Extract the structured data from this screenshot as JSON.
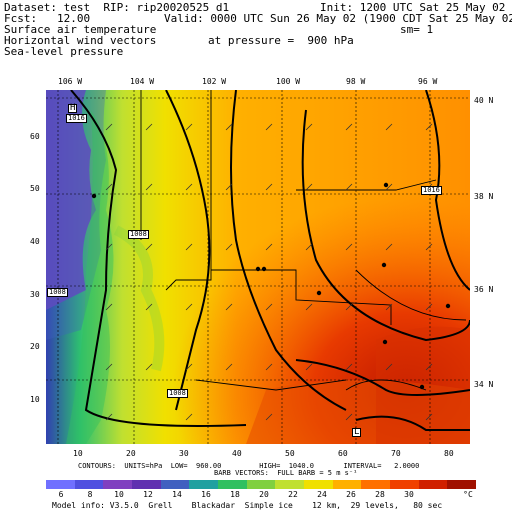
{
  "header": {
    "dataset": "Dataset: test  RIP: rip20020525 d1",
    "init": "Init: 1200 UTC Sat 25 May 02",
    "fcst": "Fcst:   12.00",
    "valid": "Valid: 0000 UTC Sun 26 May 02 (1900 CDT Sat 25 May 02)",
    "field1": "Surface air temperature",
    "sm": "sm= 1",
    "field2": "Horizontal wind vectors",
    "pressure": "at pressure =  900 hPa",
    "field3": "Sea-level pressure"
  },
  "map": {
    "lon_labels": [
      "106 W",
      "104 W",
      "102 W",
      "100 W",
      "98 W",
      "96 W"
    ],
    "lat_labels": [
      "40 N",
      "38 N",
      "36 N",
      "34 N"
    ],
    "y_ticks": [
      "60",
      "50",
      "40",
      "30",
      "20",
      "10"
    ],
    "x_ticks": [
      "10",
      "20",
      "30",
      "40",
      "50",
      "60",
      "70",
      "80"
    ],
    "contour_labels": [
      "1016",
      "1008",
      "1016",
      "1008",
      "1008"
    ],
    "pressure_centers": [
      "H",
      "L"
    ]
  },
  "footer": {
    "contours": "CONTOURS:  UNITS=hPa  LOW=  960.00         HIGH=  1040.0       INTERVAL=   2.0000",
    "barbs": "BARB VECTORS:  FULL BARB = 5 m s⁻¹",
    "model_info": "Model info: V3.5.0  Grell    Blackadar  Simple ice    12 km,  29 levels,   80 sec"
  },
  "colorbar": {
    "labels": [
      "6",
      "8",
      "10",
      "12",
      "14",
      "16",
      "18",
      "20",
      "22",
      "24",
      "26",
      "28",
      "30",
      "°C"
    ],
    "colors": [
      "#7070ff",
      "#5050e0",
      "#8040c0",
      "#6030b0",
      "#4060c0",
      "#20a0a0",
      "#30c060",
      "#80d040",
      "#c0e030",
      "#f0e000",
      "#ffb000",
      "#ff7000",
      "#f04000",
      "#d02000",
      "#a01000"
    ]
  }
}
